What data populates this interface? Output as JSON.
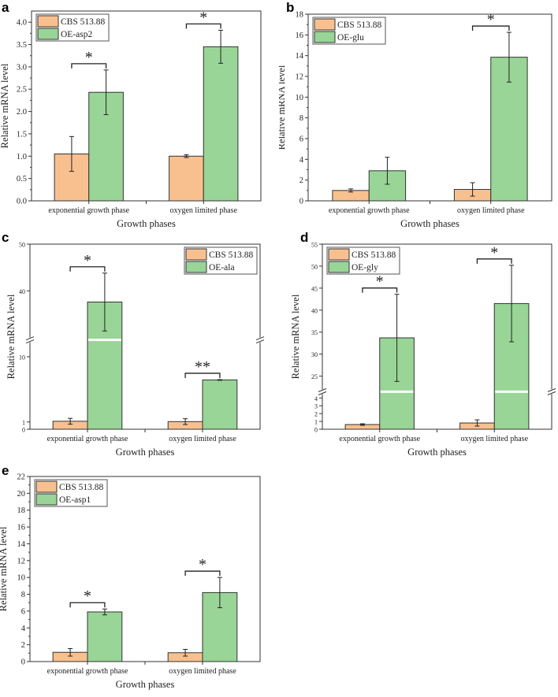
{
  "chart_data": [
    {
      "panel": "a",
      "type": "bar",
      "categories": [
        "exponential growth phase",
        "oxygen limited phase"
      ],
      "xlabel": "Growth phases",
      "ylabel": "Relative mRNA level",
      "ylim": [
        0,
        4.25
      ],
      "ticks": [
        0,
        0.5,
        1,
        1.5,
        2,
        2.5,
        3,
        3.5,
        4
      ],
      "tick_labels": [
        "0.0",
        "0.5",
        "1.0",
        "1.5",
        "2.0",
        "2.5",
        "3.0",
        "3.5",
        "4.0"
      ],
      "legend": "top-left",
      "series": [
        {
          "name": "CBS 513.88",
          "color": "#f9c08f",
          "values": [
            1.05,
            1.0
          ],
          "errors": [
            0.39,
            0.03
          ]
        },
        {
          "name": "OE-asp2",
          "color": "#98d596",
          "values": [
            2.43,
            3.45
          ],
          "errors": [
            0.5,
            0.37
          ]
        }
      ],
      "significance": [
        "*",
        "*"
      ]
    },
    {
      "panel": "b",
      "type": "bar",
      "categories": [
        "exponential growth phase",
        "oxygen limited phase"
      ],
      "xlabel": "Growth phases",
      "ylabel": "Relative mRNA level",
      "ylim": [
        0,
        18
      ],
      "ticks": [
        0,
        2,
        4,
        6,
        8,
        10,
        12,
        14,
        16,
        18
      ],
      "tick_labels": [
        "0",
        "2",
        "4",
        "6",
        "8",
        "10",
        "12",
        "14",
        "16",
        "18"
      ],
      "legend": "top-left",
      "series": [
        {
          "name": "CBS 513.88",
          "color": "#f9c08f",
          "values": [
            1.0,
            1.1
          ],
          "errors": [
            0.15,
            0.65
          ]
        },
        {
          "name": "OE-glu",
          "color": "#98d596",
          "values": [
            2.9,
            13.85
          ],
          "errors": [
            1.3,
            2.4
          ]
        }
      ],
      "significance": [
        "",
        "*"
      ]
    },
    {
      "panel": "c",
      "type": "bar",
      "categories": [
        "exponential growth phase",
        "oxygen limited phase"
      ],
      "xlabel": "Growth phases",
      "ylabel": "Relative mRNA level",
      "axis_break": {
        "lower": [
          0,
          12
        ],
        "upper": [
          30,
          50
        ]
      },
      "ticks": [
        0,
        1,
        10,
        40,
        50
      ],
      "tick_labels": [
        "0",
        "1",
        "10",
        "40",
        "50"
      ],
      "legend": "top-right",
      "series": [
        {
          "name": "CBS 513.88",
          "color": "#f9c08f",
          "values": [
            1.1,
            1.05
          ],
          "errors": [
            0.4,
            0.4
          ]
        },
        {
          "name": "OE-ala",
          "color": "#98d596",
          "values": [
            37.6,
            6.8
          ],
          "errors": [
            6.2,
            0.05
          ]
        }
      ],
      "significance": [
        "*",
        "**"
      ]
    },
    {
      "panel": "d",
      "type": "bar",
      "categories": [
        "exponential growth phase",
        "oxygen limited phase"
      ],
      "xlabel": "Growth phases",
      "ylabel": "Relative mRNA level",
      "axis_break": {
        "lower": [
          0,
          4.5
        ],
        "upper": [
          22,
          55
        ]
      },
      "ticks": [
        0,
        1,
        2,
        3,
        4,
        25,
        30,
        35,
        40,
        45,
        50,
        55
      ],
      "tick_labels": [
        "0",
        "1",
        "2",
        "3",
        "4",
        "25",
        "30",
        "35",
        "40",
        "45",
        "50",
        "55"
      ],
      "legend": "top-left",
      "series": [
        {
          "name": "CBS 513.88",
          "color": "#f9c08f",
          "values": [
            0.6,
            0.8
          ],
          "errors": [
            0.1,
            0.4
          ]
        },
        {
          "name": "OE-gly",
          "color": "#98d596",
          "values": [
            33.7,
            41.5
          ],
          "errors": [
            9.9,
            8.7
          ]
        }
      ],
      "significance": [
        "*",
        "*"
      ]
    },
    {
      "panel": "e",
      "type": "bar",
      "categories": [
        "exponential growth phase",
        "oxygen limited phase"
      ],
      "xlabel": "Growth phases",
      "ylabel": "Relative mRNA level",
      "ylim": [
        0,
        22
      ],
      "ticks": [
        0,
        2,
        4,
        6,
        8,
        10,
        12,
        14,
        16,
        18,
        20,
        22
      ],
      "tick_labels": [
        "0",
        "2",
        "4",
        "6",
        "8",
        "10",
        "12",
        "14",
        "16",
        "18",
        "20",
        "22"
      ],
      "legend": "top-left",
      "series": [
        {
          "name": "CBS 513.88",
          "color": "#f9c08f",
          "values": [
            1.1,
            1.05
          ],
          "errors": [
            0.45,
            0.4
          ]
        },
        {
          "name": "OE-asp1",
          "color": "#98d596",
          "values": [
            5.9,
            8.2
          ],
          "errors": [
            0.35,
            1.8
          ]
        }
      ],
      "significance": [
        "*",
        "*"
      ]
    }
  ]
}
